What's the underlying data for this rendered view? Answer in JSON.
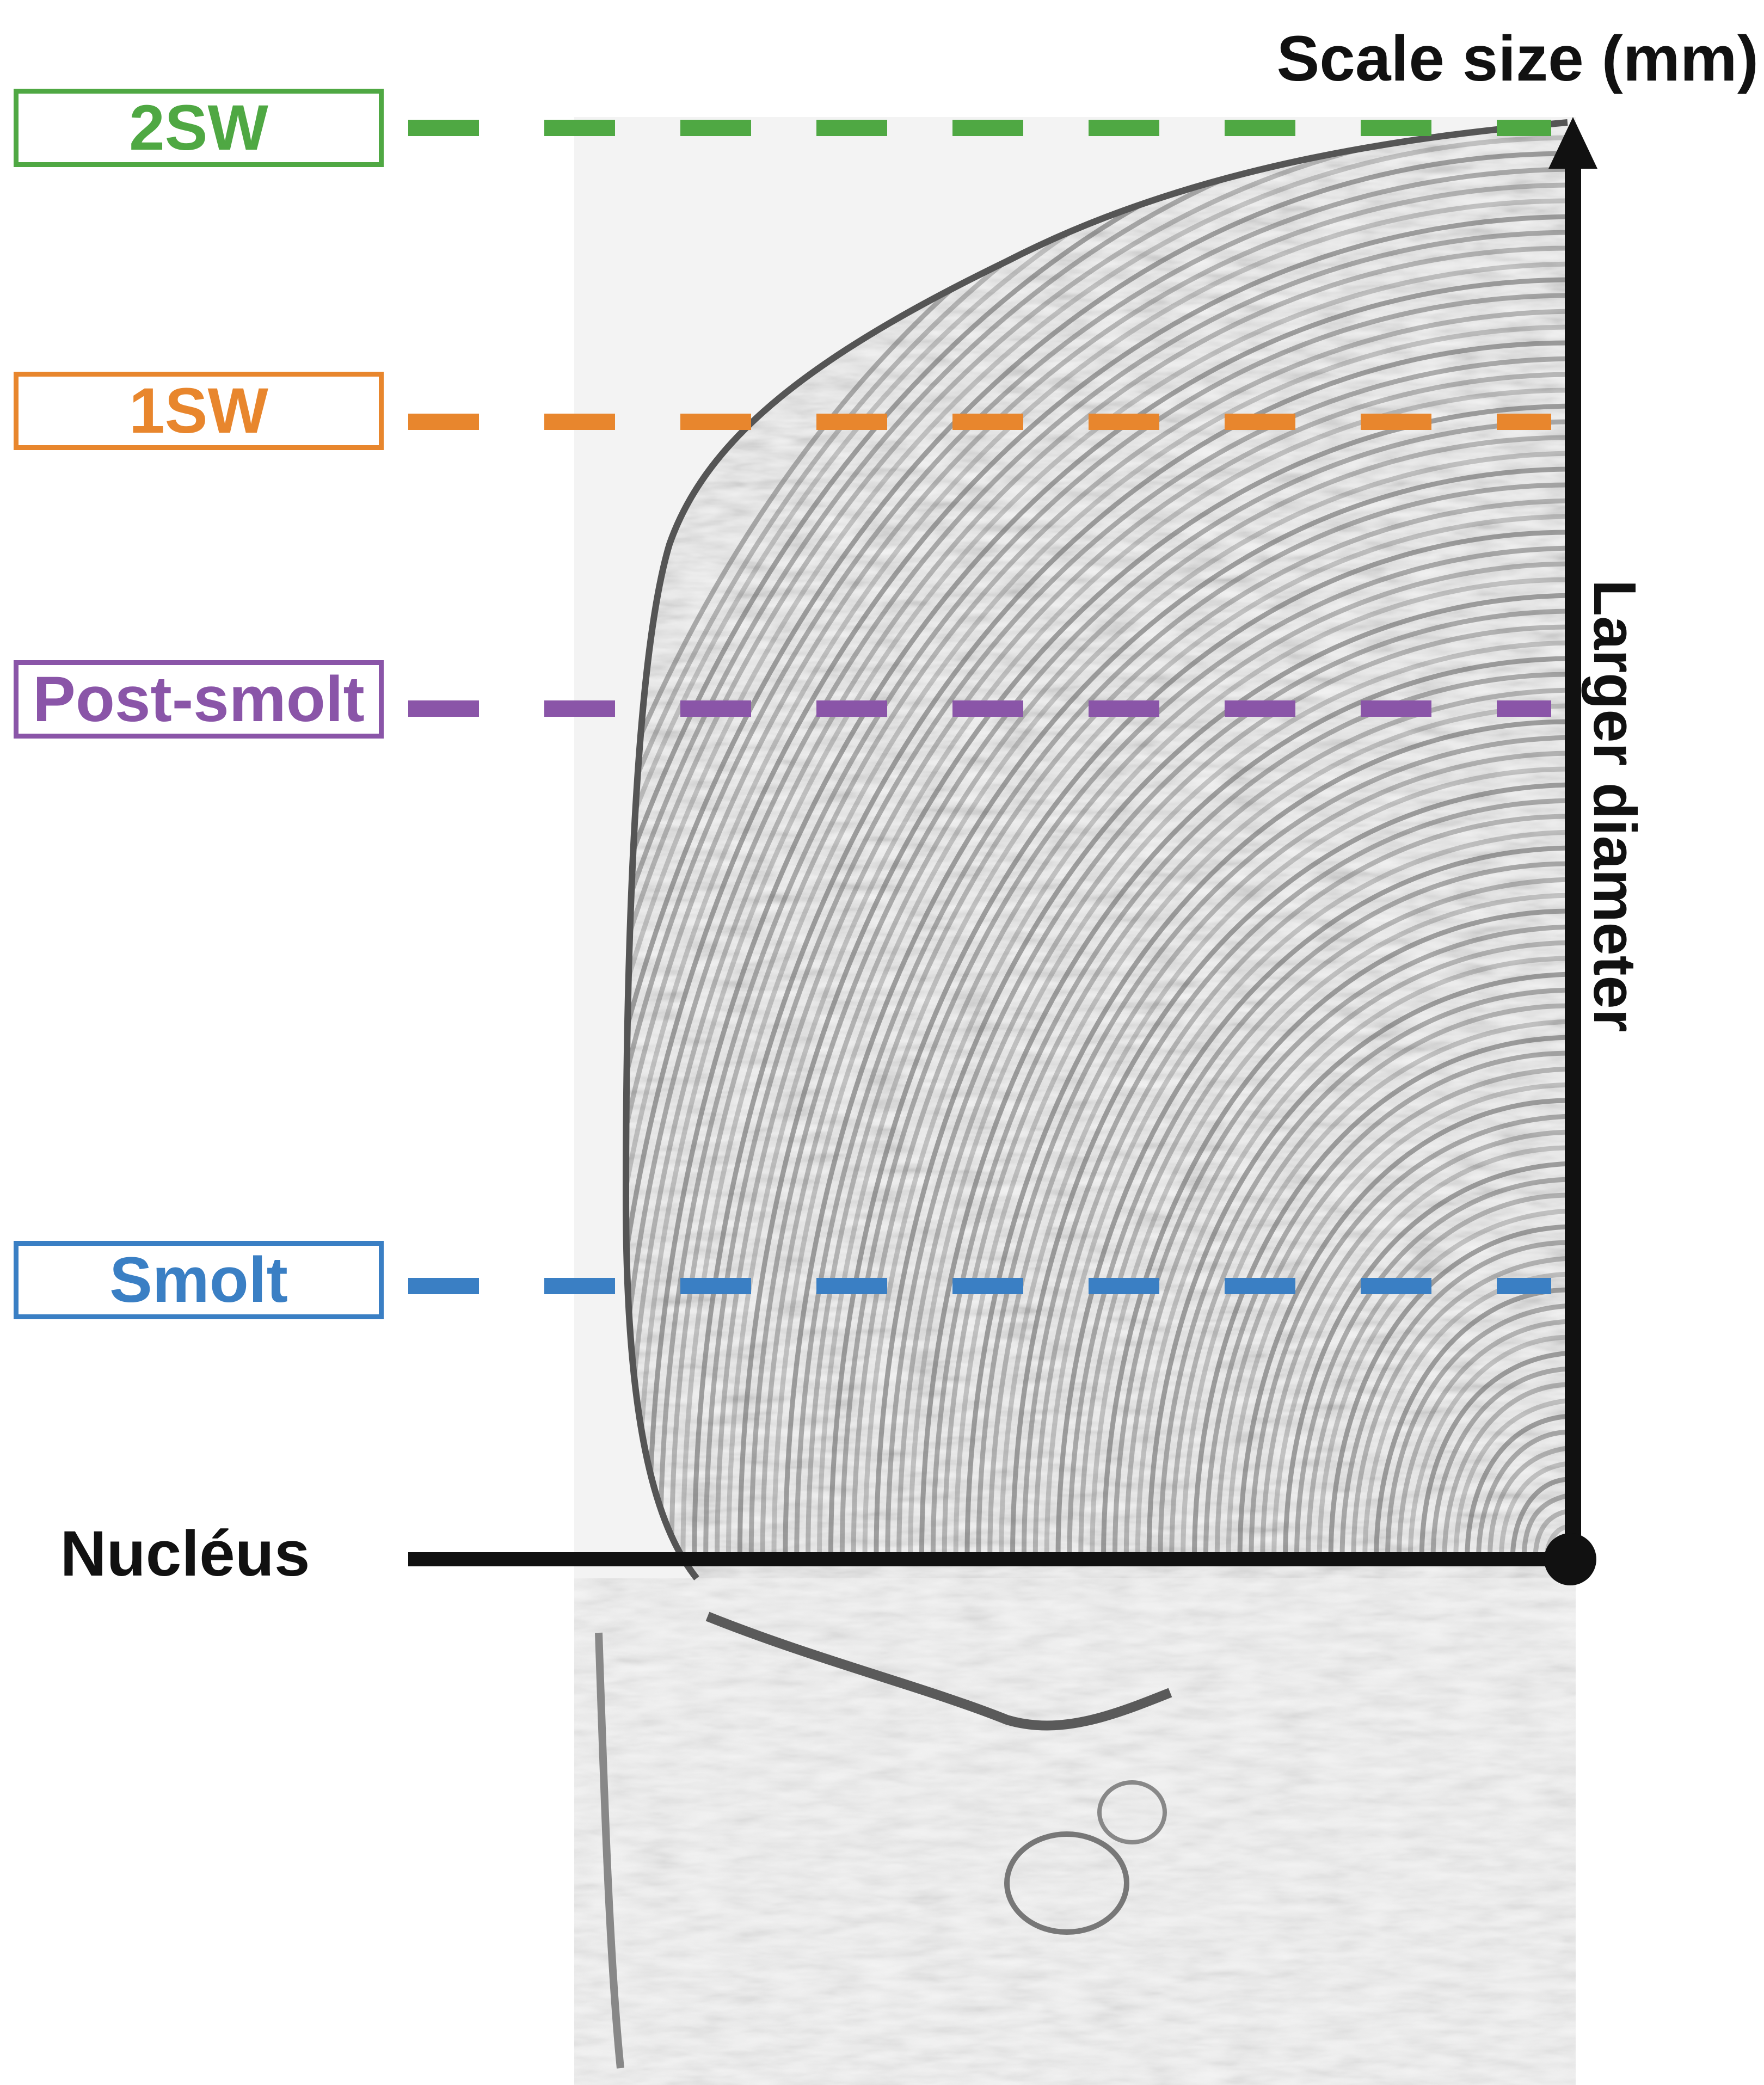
{
  "title": "Scale size (mm)",
  "axis_label": "Larger diameter",
  "origin_label": "Nucléus",
  "zones": [
    {
      "label": "2SW",
      "color": "#4fa843"
    },
    {
      "label": "1SW",
      "color": "#e8862d"
    },
    {
      "label": "Post-smolt",
      "color": "#8a55a8"
    },
    {
      "label": "Smolt",
      "color": "#3a7fc4"
    }
  ],
  "colors": {
    "axis": "#111111",
    "scale_texture": "#8a8a8a"
  }
}
